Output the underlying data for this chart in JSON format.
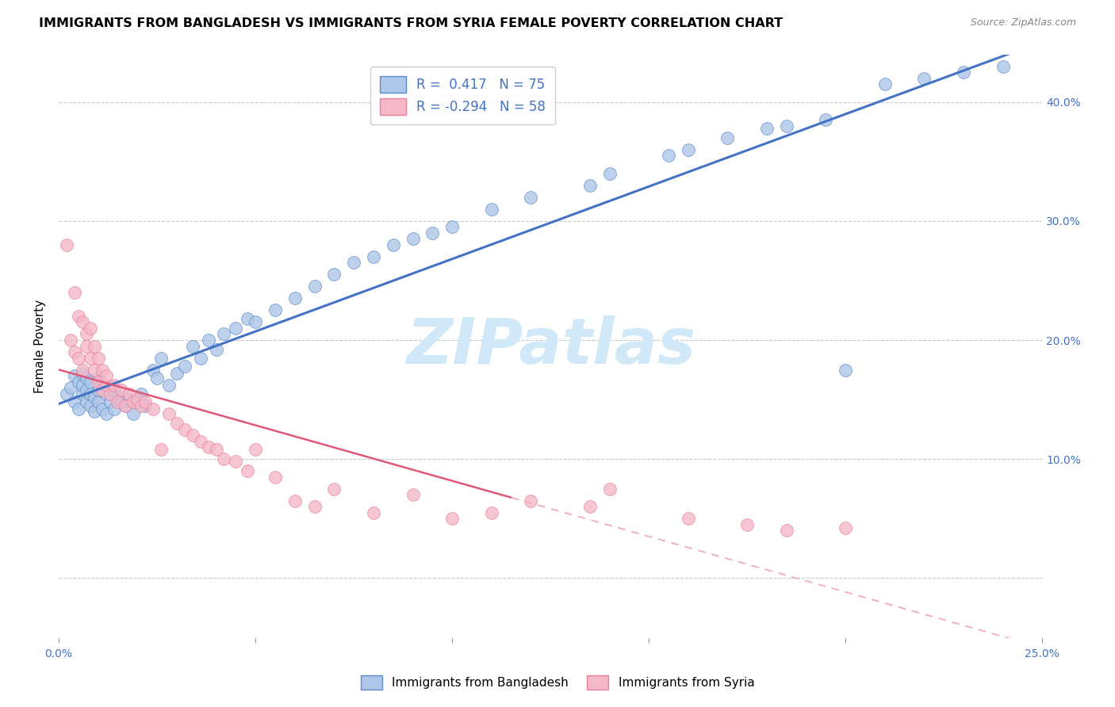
{
  "title": "IMMIGRANTS FROM BANGLADESH VS IMMIGRANTS FROM SYRIA FEMALE POVERTY CORRELATION CHART",
  "source": "Source: ZipAtlas.com",
  "ylabel": "Female Poverty",
  "xlim": [
    0.0,
    0.25
  ],
  "ylim": [
    -0.05,
    0.44
  ],
  "xticks": [
    0.0,
    0.05,
    0.1,
    0.15,
    0.2,
    0.25
  ],
  "yticks": [
    0.0,
    0.1,
    0.2,
    0.3,
    0.4
  ],
  "bangladesh_R": 0.417,
  "bangladesh_N": 75,
  "syria_R": -0.294,
  "syria_N": 58,
  "bangladesh_color": "#aec6e8",
  "syria_color": "#f4b8c8",
  "bangladesh_edge_color": "#5b8cc8",
  "syria_edge_color": "#e8809a",
  "bangladesh_line_color": "#4472c4",
  "syria_line_solid_color": "#e05878",
  "syria_line_dash_color": "#f0b0c0",
  "watermark_text": "ZIPatlas",
  "watermark_color": "#d0e8f8",
  "legend_bangladesh_label": "Immigrants from Bangladesh",
  "legend_syria_label": "Immigrants from Syria",
  "background_color": "#ffffff",
  "grid_color": "#c8c8c8",
  "title_fontsize": 11.5,
  "source_fontsize": 9,
  "legend_text_color": "#4472c4",
  "axis_tick_color": "#4472c4",
  "bangladesh_x": [
    0.002,
    0.003,
    0.004,
    0.004,
    0.005,
    0.005,
    0.006,
    0.006,
    0.006,
    0.007,
    0.007,
    0.007,
    0.008,
    0.008,
    0.008,
    0.009,
    0.009,
    0.01,
    0.01,
    0.01,
    0.011,
    0.011,
    0.012,
    0.012,
    0.013,
    0.013,
    0.014,
    0.014,
    0.015,
    0.016,
    0.017,
    0.018,
    0.019,
    0.02,
    0.021,
    0.022,
    0.024,
    0.025,
    0.026,
    0.028,
    0.03,
    0.032,
    0.034,
    0.036,
    0.038,
    0.04,
    0.042,
    0.045,
    0.048,
    0.05,
    0.055,
    0.06,
    0.065,
    0.07,
    0.075,
    0.08,
    0.085,
    0.09,
    0.095,
    0.1,
    0.11,
    0.12,
    0.135,
    0.14,
    0.155,
    0.16,
    0.17,
    0.18,
    0.185,
    0.195,
    0.2,
    0.21,
    0.22,
    0.23,
    0.24
  ],
  "bangladesh_y": [
    0.155,
    0.16,
    0.148,
    0.17,
    0.142,
    0.165,
    0.155,
    0.162,
    0.172,
    0.148,
    0.158,
    0.168,
    0.145,
    0.155,
    0.165,
    0.14,
    0.152,
    0.148,
    0.158,
    0.168,
    0.142,
    0.162,
    0.138,
    0.155,
    0.148,
    0.16,
    0.142,
    0.158,
    0.152,
    0.148,
    0.145,
    0.15,
    0.138,
    0.148,
    0.155,
    0.145,
    0.175,
    0.168,
    0.185,
    0.162,
    0.172,
    0.178,
    0.195,
    0.185,
    0.2,
    0.192,
    0.205,
    0.21,
    0.218,
    0.215,
    0.225,
    0.235,
    0.245,
    0.255,
    0.265,
    0.27,
    0.28,
    0.285,
    0.29,
    0.295,
    0.31,
    0.32,
    0.33,
    0.34,
    0.355,
    0.36,
    0.37,
    0.378,
    0.38,
    0.385,
    0.175,
    0.415,
    0.42,
    0.425,
    0.43
  ],
  "syria_x": [
    0.002,
    0.003,
    0.004,
    0.004,
    0.005,
    0.005,
    0.006,
    0.006,
    0.007,
    0.007,
    0.008,
    0.008,
    0.009,
    0.009,
    0.01,
    0.01,
    0.011,
    0.011,
    0.012,
    0.012,
    0.013,
    0.014,
    0.015,
    0.016,
    0.017,
    0.018,
    0.019,
    0.02,
    0.021,
    0.022,
    0.024,
    0.026,
    0.028,
    0.03,
    0.032,
    0.034,
    0.036,
    0.038,
    0.04,
    0.042,
    0.045,
    0.048,
    0.05,
    0.055,
    0.06,
    0.065,
    0.07,
    0.08,
    0.09,
    0.1,
    0.11,
    0.12,
    0.135,
    0.14,
    0.16,
    0.175,
    0.185,
    0.2
  ],
  "syria_y": [
    0.28,
    0.2,
    0.24,
    0.19,
    0.22,
    0.185,
    0.215,
    0.175,
    0.205,
    0.195,
    0.185,
    0.21,
    0.175,
    0.195,
    0.165,
    0.185,
    0.158,
    0.175,
    0.162,
    0.17,
    0.155,
    0.162,
    0.148,
    0.158,
    0.145,
    0.155,
    0.148,
    0.15,
    0.145,
    0.148,
    0.142,
    0.108,
    0.138,
    0.13,
    0.125,
    0.12,
    0.115,
    0.11,
    0.108,
    0.1,
    0.098,
    0.09,
    0.108,
    0.085,
    0.065,
    0.06,
    0.075,
    0.055,
    0.07,
    0.05,
    0.055,
    0.065,
    0.06,
    0.075,
    0.05,
    0.045,
    0.04,
    0.042
  ]
}
